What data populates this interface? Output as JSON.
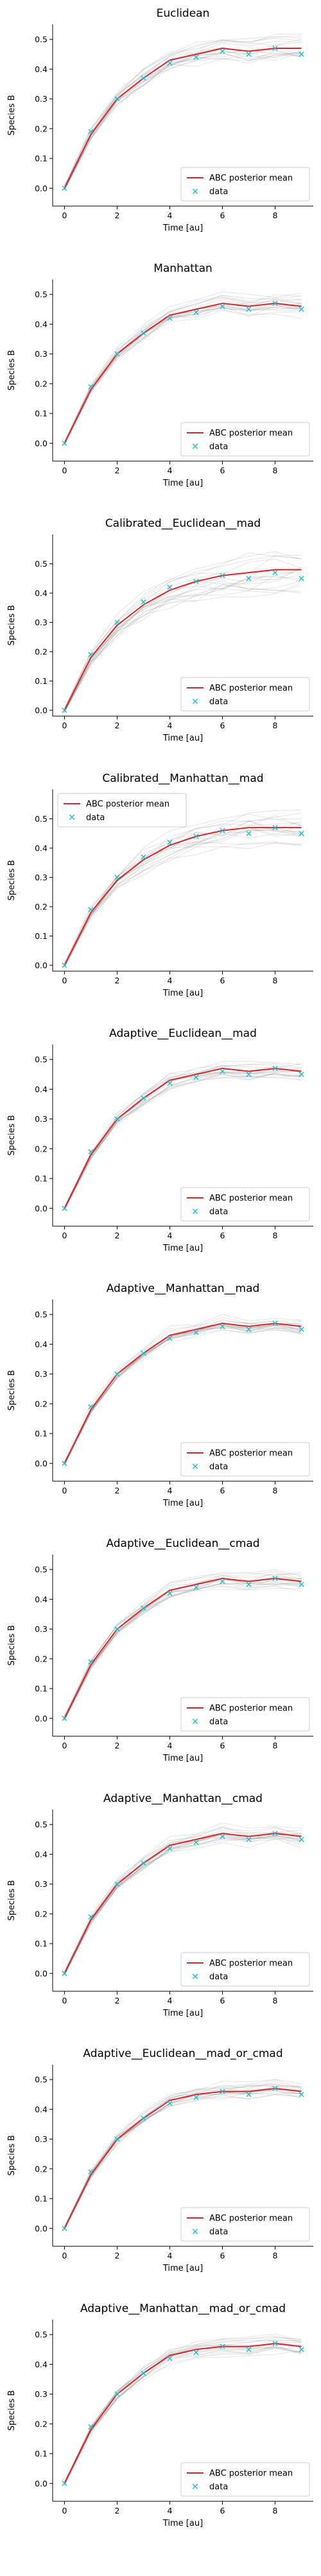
{
  "colors": {
    "posterior_mean": "#d62728",
    "data_marker": "#17becf",
    "samples": "#808080",
    "axis": "#000000"
  },
  "chart_data": [
    {
      "type": "line",
      "title": "Euclidean",
      "xlabel": "Time [au]",
      "ylabel": "Species B",
      "x_ticks": [
        0,
        2,
        4,
        6,
        8
      ],
      "y_ticks": [
        0.0,
        0.1,
        0.2,
        0.3,
        0.4,
        0.5
      ],
      "xlim": [
        -0.45,
        9.45
      ],
      "ylim": [
        -0.06,
        0.55
      ],
      "legend_position": "lower right",
      "legend_order": [
        "posterior_mean",
        "data"
      ],
      "legend": {
        "posterior_mean": "ABC posterior mean",
        "data": "data"
      },
      "x": [
        0,
        1,
        2,
        3,
        4,
        5,
        6,
        7,
        8,
        9
      ],
      "posterior_mean": [
        0.0,
        0.18,
        0.3,
        0.37,
        0.43,
        0.45,
        0.47,
        0.46,
        0.47,
        0.47
      ],
      "data": [
        0.0,
        0.19,
        0.3,
        0.37,
        0.42,
        0.44,
        0.46,
        0.45,
        0.47,
        0.45
      ],
      "sample_spread": [
        0.01,
        0.025,
        0.03,
        0.035,
        0.04,
        0.045,
        0.05,
        0.05,
        0.05,
        0.05
      ]
    },
    {
      "type": "line",
      "title": "Manhattan",
      "xlabel": "Time [au]",
      "ylabel": "Species B",
      "x_ticks": [
        0,
        2,
        4,
        6,
        8
      ],
      "y_ticks": [
        0.0,
        0.1,
        0.2,
        0.3,
        0.4,
        0.5
      ],
      "xlim": [
        -0.45,
        9.45
      ],
      "ylim": [
        -0.06,
        0.55
      ],
      "legend_position": "lower right",
      "legend_order": [
        "posterior_mean",
        "data"
      ],
      "legend": {
        "posterior_mean": "ABC posterior mean",
        "data": "data"
      },
      "x": [
        0,
        1,
        2,
        3,
        4,
        5,
        6,
        7,
        8,
        9
      ],
      "posterior_mean": [
        0.0,
        0.18,
        0.3,
        0.37,
        0.43,
        0.45,
        0.47,
        0.46,
        0.47,
        0.46
      ],
      "data": [
        0.0,
        0.19,
        0.3,
        0.37,
        0.42,
        0.44,
        0.46,
        0.45,
        0.47,
        0.45
      ],
      "sample_spread": [
        0.01,
        0.025,
        0.03,
        0.035,
        0.04,
        0.045,
        0.05,
        0.05,
        0.05,
        0.05
      ]
    },
    {
      "type": "line",
      "title": "Calibrated__Euclidean__mad",
      "xlabel": "Time [au]",
      "ylabel": "Species B",
      "x_ticks": [
        0,
        2,
        4,
        6,
        8
      ],
      "y_ticks": [
        0.0,
        0.1,
        0.2,
        0.3,
        0.4,
        0.5
      ],
      "xlim": [
        -0.45,
        9.45
      ],
      "ylim": [
        -0.02,
        0.6
      ],
      "legend_position": "lower right",
      "legend_order": [
        "posterior_mean",
        "data"
      ],
      "legend": {
        "posterior_mean": "ABC posterior mean",
        "data": "data"
      },
      "x": [
        0,
        1,
        2,
        3,
        4,
        5,
        6,
        7,
        8,
        9
      ],
      "posterior_mean": [
        0.0,
        0.18,
        0.29,
        0.36,
        0.41,
        0.44,
        0.46,
        0.47,
        0.48,
        0.48
      ],
      "data": [
        0.0,
        0.19,
        0.3,
        0.37,
        0.42,
        0.44,
        0.46,
        0.45,
        0.47,
        0.45
      ],
      "sample_spread": [
        0.01,
        0.03,
        0.045,
        0.06,
        0.07,
        0.075,
        0.08,
        0.085,
        0.09,
        0.09
      ]
    },
    {
      "type": "line",
      "title": "Calibrated__Manhattan__mad",
      "xlabel": "Time [au]",
      "ylabel": "Species B",
      "x_ticks": [
        0,
        2,
        4,
        6,
        8
      ],
      "y_ticks": [
        0.0,
        0.1,
        0.2,
        0.3,
        0.4,
        0.5
      ],
      "xlim": [
        -0.45,
        9.45
      ],
      "ylim": [
        -0.02,
        0.6
      ],
      "legend_position": "upper left",
      "legend_order": [
        "posterior_mean",
        "data"
      ],
      "legend": {
        "posterior_mean": "ABC posterior mean",
        "data": "data"
      },
      "x": [
        0,
        1,
        2,
        3,
        4,
        5,
        6,
        7,
        8,
        9
      ],
      "posterior_mean": [
        0.0,
        0.18,
        0.29,
        0.36,
        0.41,
        0.44,
        0.46,
        0.47,
        0.47,
        0.47
      ],
      "data": [
        0.0,
        0.19,
        0.3,
        0.37,
        0.42,
        0.44,
        0.46,
        0.45,
        0.47,
        0.45
      ],
      "sample_spread": [
        0.01,
        0.03,
        0.045,
        0.055,
        0.065,
        0.07,
        0.075,
        0.08,
        0.085,
        0.085
      ]
    },
    {
      "type": "line",
      "title": "Adaptive__Euclidean__mad",
      "xlabel": "Time [au]",
      "ylabel": "Species B",
      "x_ticks": [
        0,
        2,
        4,
        6,
        8
      ],
      "y_ticks": [
        0.0,
        0.1,
        0.2,
        0.3,
        0.4,
        0.5
      ],
      "xlim": [
        -0.45,
        9.45
      ],
      "ylim": [
        -0.06,
        0.55
      ],
      "legend_position": "lower right",
      "legend_order": [
        "posterior_mean",
        "data"
      ],
      "legend": {
        "posterior_mean": "ABC posterior mean",
        "data": "data"
      },
      "x": [
        0,
        1,
        2,
        3,
        4,
        5,
        6,
        7,
        8,
        9
      ],
      "posterior_mean": [
        0.0,
        0.18,
        0.3,
        0.37,
        0.43,
        0.45,
        0.47,
        0.46,
        0.47,
        0.46
      ],
      "data": [
        0.0,
        0.19,
        0.3,
        0.37,
        0.42,
        0.44,
        0.46,
        0.45,
        0.47,
        0.45
      ],
      "sample_spread": [
        0.01,
        0.02,
        0.025,
        0.03,
        0.035,
        0.035,
        0.04,
        0.04,
        0.04,
        0.04
      ]
    },
    {
      "type": "line",
      "title": "Adaptive__Manhattan__mad",
      "xlabel": "Time [au]",
      "ylabel": "Species B",
      "x_ticks": [
        0,
        2,
        4,
        6,
        8
      ],
      "y_ticks": [
        0.0,
        0.1,
        0.2,
        0.3,
        0.4,
        0.5
      ],
      "xlim": [
        -0.45,
        9.45
      ],
      "ylim": [
        -0.06,
        0.55
      ],
      "legend_position": "lower right",
      "legend_order": [
        "posterior_mean",
        "data"
      ],
      "legend": {
        "posterior_mean": "ABC posterior mean",
        "data": "data"
      },
      "x": [
        0,
        1,
        2,
        3,
        4,
        5,
        6,
        7,
        8,
        9
      ],
      "posterior_mean": [
        0.0,
        0.18,
        0.3,
        0.37,
        0.43,
        0.45,
        0.47,
        0.46,
        0.47,
        0.46
      ],
      "data": [
        0.0,
        0.19,
        0.3,
        0.37,
        0.42,
        0.44,
        0.46,
        0.45,
        0.47,
        0.45
      ],
      "sample_spread": [
        0.01,
        0.02,
        0.025,
        0.03,
        0.035,
        0.035,
        0.04,
        0.04,
        0.04,
        0.04
      ]
    },
    {
      "type": "line",
      "title": "Adaptive__Euclidean__cmad",
      "xlabel": "Time [au]",
      "ylabel": "Species B",
      "x_ticks": [
        0,
        2,
        4,
        6,
        8
      ],
      "y_ticks": [
        0.0,
        0.1,
        0.2,
        0.3,
        0.4,
        0.5
      ],
      "xlim": [
        -0.45,
        9.45
      ],
      "ylim": [
        -0.06,
        0.55
      ],
      "legend_position": "lower right",
      "legend_order": [
        "posterior_mean",
        "data"
      ],
      "legend": {
        "posterior_mean": "ABC posterior mean",
        "data": "data"
      },
      "x": [
        0,
        1,
        2,
        3,
        4,
        5,
        6,
        7,
        8,
        9
      ],
      "posterior_mean": [
        0.0,
        0.18,
        0.3,
        0.37,
        0.43,
        0.45,
        0.47,
        0.46,
        0.47,
        0.46
      ],
      "data": [
        0.0,
        0.19,
        0.3,
        0.37,
        0.42,
        0.44,
        0.46,
        0.45,
        0.47,
        0.45
      ],
      "sample_spread": [
        0.01,
        0.02,
        0.025,
        0.03,
        0.035,
        0.035,
        0.04,
        0.04,
        0.04,
        0.04
      ]
    },
    {
      "type": "line",
      "title": "Adaptive__Manhattan__cmad",
      "xlabel": "Time [au]",
      "ylabel": "Species B",
      "x_ticks": [
        0,
        2,
        4,
        6,
        8
      ],
      "y_ticks": [
        0.0,
        0.1,
        0.2,
        0.3,
        0.4,
        0.5
      ],
      "xlim": [
        -0.45,
        9.45
      ],
      "ylim": [
        -0.06,
        0.55
      ],
      "legend_position": "lower right",
      "legend_order": [
        "posterior_mean",
        "data"
      ],
      "legend": {
        "posterior_mean": "ABC posterior mean",
        "data": "data"
      },
      "x": [
        0,
        1,
        2,
        3,
        4,
        5,
        6,
        7,
        8,
        9
      ],
      "posterior_mean": [
        0.0,
        0.18,
        0.3,
        0.37,
        0.43,
        0.45,
        0.47,
        0.46,
        0.47,
        0.46
      ],
      "data": [
        0.0,
        0.19,
        0.3,
        0.37,
        0.42,
        0.44,
        0.46,
        0.45,
        0.47,
        0.45
      ],
      "sample_spread": [
        0.01,
        0.02,
        0.025,
        0.03,
        0.035,
        0.035,
        0.04,
        0.04,
        0.04,
        0.04
      ]
    },
    {
      "type": "line",
      "title": "Adaptive__Euclidean__mad_or_cmad",
      "xlabel": "Time [au]",
      "ylabel": "Species B",
      "x_ticks": [
        0,
        2,
        4,
        6,
        8
      ],
      "y_ticks": [
        0.0,
        0.1,
        0.2,
        0.3,
        0.4,
        0.5
      ],
      "xlim": [
        -0.45,
        9.45
      ],
      "ylim": [
        -0.06,
        0.55
      ],
      "legend_position": "lower right",
      "legend_order": [
        "posterior_mean",
        "data"
      ],
      "legend": {
        "posterior_mean": "ABC posterior mean",
        "data": "data"
      },
      "x": [
        0,
        1,
        2,
        3,
        4,
        5,
        6,
        7,
        8,
        9
      ],
      "posterior_mean": [
        0.0,
        0.18,
        0.3,
        0.37,
        0.43,
        0.45,
        0.46,
        0.46,
        0.47,
        0.46
      ],
      "data": [
        0.0,
        0.19,
        0.3,
        0.37,
        0.42,
        0.44,
        0.46,
        0.45,
        0.47,
        0.45
      ],
      "sample_spread": [
        0.01,
        0.02,
        0.025,
        0.03,
        0.035,
        0.035,
        0.04,
        0.04,
        0.04,
        0.04
      ]
    },
    {
      "type": "line",
      "title": "Adaptive__Manhattan__mad_or_cmad",
      "xlabel": "Time [au]",
      "ylabel": "Species B",
      "x_ticks": [
        0,
        2,
        4,
        6,
        8
      ],
      "y_ticks": [
        0.0,
        0.1,
        0.2,
        0.3,
        0.4,
        0.5
      ],
      "xlim": [
        -0.45,
        9.45
      ],
      "ylim": [
        -0.06,
        0.55
      ],
      "legend_position": "lower right",
      "legend_order": [
        "posterior_mean",
        "data"
      ],
      "legend": {
        "posterior_mean": "ABC posterior mean",
        "data": "data"
      },
      "x": [
        0,
        1,
        2,
        3,
        4,
        5,
        6,
        7,
        8,
        9
      ],
      "posterior_mean": [
        0.0,
        0.18,
        0.3,
        0.37,
        0.43,
        0.45,
        0.46,
        0.46,
        0.47,
        0.46
      ],
      "data": [
        0.0,
        0.19,
        0.3,
        0.37,
        0.42,
        0.44,
        0.46,
        0.45,
        0.47,
        0.45
      ],
      "sample_spread": [
        0.01,
        0.02,
        0.025,
        0.03,
        0.035,
        0.035,
        0.04,
        0.04,
        0.04,
        0.04
      ]
    }
  ]
}
